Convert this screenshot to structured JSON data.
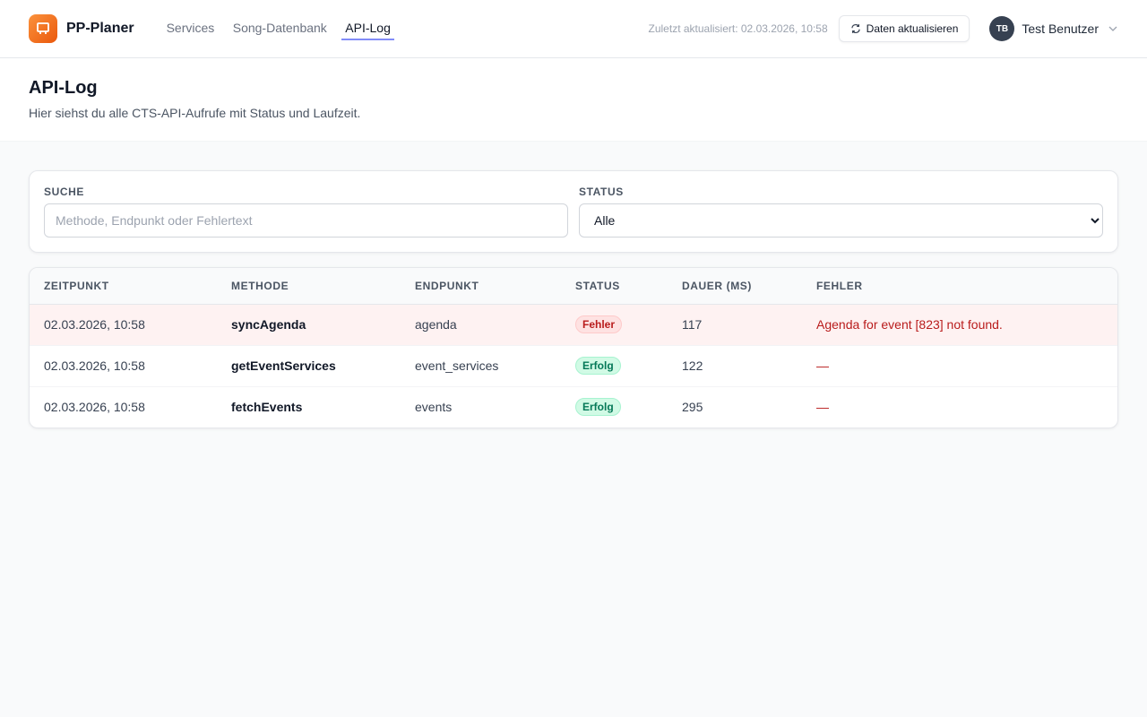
{
  "app": {
    "name": "PP-Planer"
  },
  "nav": [
    {
      "label": "Services"
    },
    {
      "label": "Song-Datenbank"
    },
    {
      "label": "API-Log",
      "active": true
    }
  ],
  "header": {
    "last_updated": "Zuletzt aktualisiert: 02.03.2026, 10:58",
    "refresh_label": "Daten aktualisieren",
    "user_initials": "TB",
    "user_name": "Test Benutzer"
  },
  "page": {
    "title": "API-Log",
    "subtitle": "Hier siehst du alle CTS-API-Aufrufe mit Status und Laufzeit."
  },
  "filters": {
    "search_label": "SUCHE",
    "search_placeholder": "Methode, Endpunkt oder Fehlertext",
    "search_value": "",
    "status_label": "STATUS",
    "status_value": "Alle"
  },
  "table": {
    "columns": [
      "ZEITPUNKT",
      "METHODE",
      "ENDPUNKT",
      "STATUS",
      "DAUER (MS)",
      "FEHLER"
    ],
    "rows": [
      {
        "time": "02.03.2026, 10:58",
        "method": "syncAgenda",
        "endpoint": "agenda",
        "status": "Fehler",
        "duration": "117",
        "error": "Agenda for event [823] not found."
      },
      {
        "time": "02.03.2026, 10:58",
        "method": "getEventServices",
        "endpoint": "event_services",
        "status": "Erfolg",
        "duration": "122",
        "error": "—"
      },
      {
        "time": "02.03.2026, 10:58",
        "method": "fetchEvents",
        "endpoint": "events",
        "status": "Erfolg",
        "duration": "295",
        "error": "—"
      }
    ]
  },
  "colors": {
    "accent": "#818cf8",
    "brand": "#f97316",
    "error": "#b91c1c",
    "success": "#047857"
  }
}
